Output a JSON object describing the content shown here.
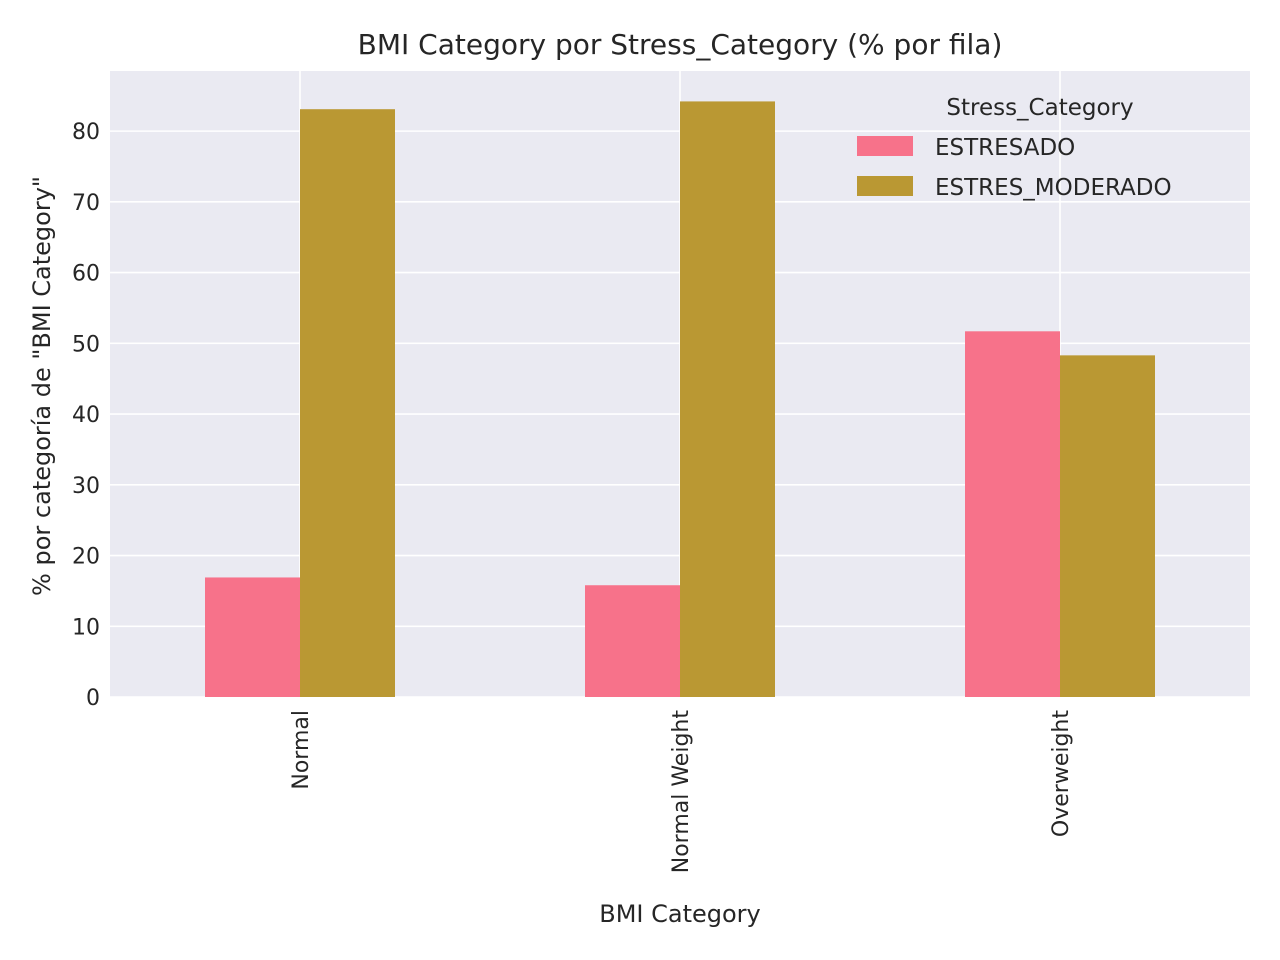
{
  "chart_data": {
    "type": "bar",
    "title": "BMI Category por Stress_Category (% por fila)",
    "xlabel": "BMI Category",
    "ylabel": "% por categoría de \"BMI Category\"",
    "categories": [
      "Normal",
      "Normal Weight",
      "Overweight"
    ],
    "series": [
      {
        "name": "ESTRESADO",
        "color": "#f7728a",
        "values": [
          16.9,
          15.8,
          51.7
        ]
      },
      {
        "name": "ESTRES_MODERADO",
        "color": "#ba9833",
        "values": [
          83.1,
          84.2,
          48.3
        ]
      }
    ],
    "ylim": [
      0,
      88.5
    ],
    "yticks": [
      0,
      10,
      20,
      30,
      40,
      50,
      60,
      70,
      80
    ],
    "grid": true,
    "legend": {
      "title": "Stress_Category",
      "placement": "top-right"
    },
    "background": "#eaeaf2"
  }
}
